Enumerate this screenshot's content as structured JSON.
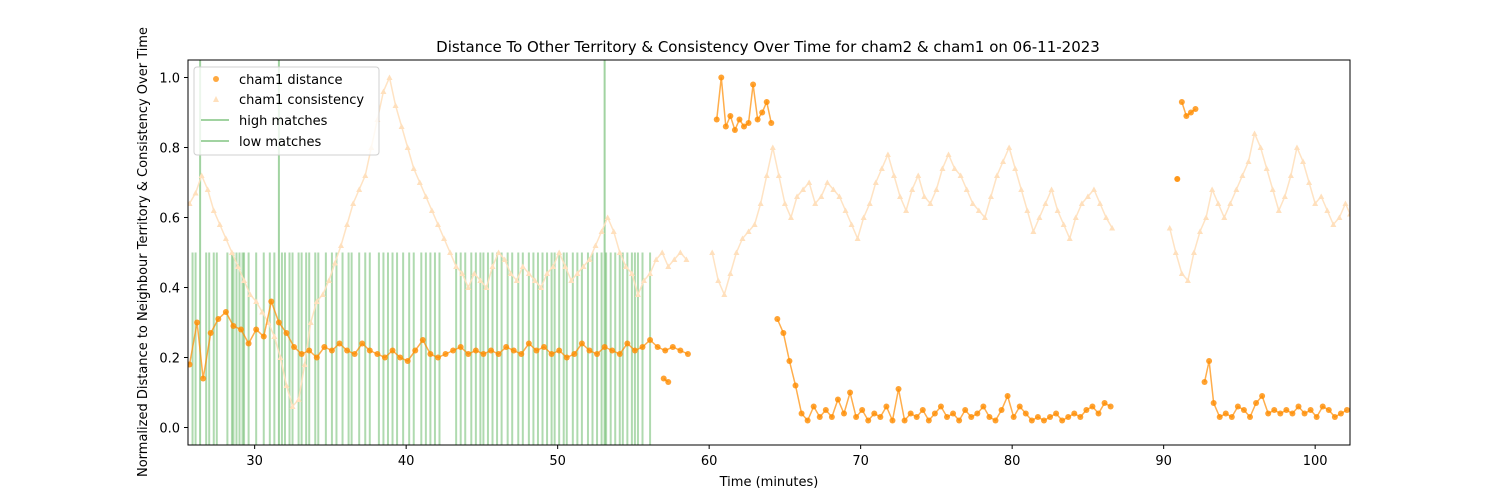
{
  "chart_data": {
    "type": "line",
    "title": "Distance To Other Territory & Consistency Over Time for cham2 & cham1 on 06-11-2023",
    "xlabel": "Time (minutes)",
    "ylabel": "Normalized Distance to Neighbour Territory & Consistency Over Time",
    "xlim": [
      25.6,
      102.3
    ],
    "ylim": [
      -0.05,
      1.05
    ],
    "xticks": [
      30,
      40,
      50,
      60,
      70,
      80,
      90,
      100
    ],
    "yticks": [
      0.0,
      0.2,
      0.4,
      0.6,
      0.8,
      1.0
    ],
    "grid": false,
    "legend_position": "top-left",
    "colors": {
      "distance": "#ff8c00",
      "consistency": "#ffe0bd",
      "matches": "#2e9e2e"
    },
    "series": [
      {
        "name": "cham1 distance",
        "segments": [
          {
            "x": [
              25.7,
              26.2,
              26.6,
              27.1,
              27.6,
              28.1,
              28.6,
              29.1,
              29.6,
              30.1,
              30.6,
              31.1,
              31.6,
              32.1,
              32.6,
              33.1,
              33.6,
              34.1,
              34.6,
              35.1,
              35.6,
              36.1,
              36.6,
              37.1,
              37.6,
              38.1,
              38.6,
              39.1,
              39.6,
              40.1,
              40.6,
              41.1,
              41.6,
              42.1,
              42.6,
              43.1,
              43.6,
              44.1,
              44.6,
              45.1,
              45.6,
              46.1,
              46.6,
              47.1,
              47.6,
              48.1,
              48.6,
              49.1,
              49.6,
              50.1,
              50.6,
              51.1,
              51.6,
              52.1,
              52.6,
              53.1,
              53.6,
              54.1,
              54.6,
              55.1,
              55.6,
              56.1,
              56.6,
              57.1,
              57.6,
              58.1,
              58.6
            ],
            "y": [
              0.18,
              0.3,
              0.14,
              0.27,
              0.31,
              0.33,
              0.29,
              0.28,
              0.24,
              0.28,
              0.26,
              0.36,
              0.3,
              0.27,
              0.23,
              0.21,
              0.22,
              0.2,
              0.23,
              0.22,
              0.24,
              0.22,
              0.21,
              0.24,
              0.22,
              0.21,
              0.2,
              0.22,
              0.2,
              0.19,
              0.22,
              0.25,
              0.21,
              0.2,
              0.21,
              0.22,
              0.23,
              0.21,
              0.22,
              0.21,
              0.22,
              0.21,
              0.23,
              0.22,
              0.21,
              0.24,
              0.22,
              0.23,
              0.21,
              0.22,
              0.2,
              0.21,
              0.24,
              0.22,
              0.21,
              0.23,
              0.22,
              0.21,
              0.24,
              0.22,
              0.23,
              0.25,
              0.23,
              0.22,
              0.23,
              0.22,
              0.21
            ]
          },
          {
            "x": [
              57.0,
              57.3
            ],
            "y": [
              0.14,
              0.13
            ]
          },
          {
            "x": [
              60.5,
              60.8,
              61.1,
              61.4,
              61.7,
              62.0,
              62.3,
              62.6,
              62.9,
              63.2,
              63.5,
              63.8,
              64.1
            ],
            "y": [
              0.88,
              1.0,
              0.86,
              0.89,
              0.85,
              0.88,
              0.86,
              0.87,
              0.98,
              0.88,
              0.9,
              0.93,
              0.87
            ]
          },
          {
            "x": [
              64.5,
              64.9,
              65.3,
              65.7,
              66.1,
              66.5,
              66.9,
              67.3,
              67.7,
              68.1,
              68.5,
              68.9,
              69.3,
              69.7,
              70.1,
              70.5,
              70.9,
              71.3,
              71.7,
              72.1,
              72.5,
              72.9,
              73.3,
              73.7,
              74.1,
              74.5,
              74.9,
              75.3,
              75.7,
              76.1,
              76.5,
              76.9,
              77.3,
              77.7,
              78.1,
              78.5,
              78.9,
              79.3,
              79.7,
              80.1,
              80.5,
              80.9,
              81.3,
              81.7,
              82.1,
              82.5,
              82.9,
              83.3,
              83.7,
              84.1,
              84.5,
              84.9,
              85.3,
              85.7,
              86.1,
              86.5
            ],
            "y": [
              0.31,
              0.27,
              0.19,
              0.12,
              0.04,
              0.02,
              0.06,
              0.03,
              0.05,
              0.03,
              0.08,
              0.04,
              0.1,
              0.03,
              0.05,
              0.02,
              0.04,
              0.03,
              0.06,
              0.02,
              0.11,
              0.02,
              0.04,
              0.03,
              0.05,
              0.02,
              0.04,
              0.06,
              0.03,
              0.04,
              0.02,
              0.05,
              0.03,
              0.04,
              0.06,
              0.03,
              0.02,
              0.05,
              0.09,
              0.03,
              0.06,
              0.04,
              0.02,
              0.03,
              0.02,
              0.03,
              0.04,
              0.02,
              0.03,
              0.04,
              0.03,
              0.05,
              0.06,
              0.04,
              0.07,
              0.06
            ]
          },
          {
            "x": [
              91.2,
              91.5,
              91.8,
              92.1
            ],
            "y": [
              0.93,
              0.89,
              0.9,
              0.91
            ]
          },
          {
            "x": [
              92.7,
              93.0,
              93.3,
              93.7,
              94.1,
              94.5,
              94.9,
              95.3,
              95.7,
              96.1,
              96.5,
              96.9,
              97.3,
              97.7,
              98.1,
              98.5,
              98.9,
              99.3,
              99.7,
              100.1,
              100.5,
              100.9,
              101.3,
              101.7,
              102.1
            ],
            "y": [
              0.13,
              0.19,
              0.07,
              0.03,
              0.04,
              0.03,
              0.06,
              0.05,
              0.03,
              0.07,
              0.09,
              0.04,
              0.05,
              0.04,
              0.05,
              0.04,
              0.06,
              0.04,
              0.05,
              0.03,
              0.06,
              0.05,
              0.03,
              0.04,
              0.05
            ]
          }
        ],
        "isolated": [
          {
            "x": 90.9,
            "y": 0.71
          }
        ]
      },
      {
        "name": "cham1 consistency",
        "segments": [
          {
            "x": [
              25.7,
              26.1,
              26.5,
              26.9,
              27.3,
              27.7,
              28.1,
              28.5,
              28.9,
              29.3,
              29.7,
              30.1,
              30.5,
              30.9,
              31.3,
              31.7,
              32.1,
              32.5,
              32.9,
              33.3,
              33.7,
              34.1,
              34.5,
              34.9,
              35.3,
              35.7,
              36.1,
              36.5,
              36.9,
              37.3,
              37.7,
              38.1,
              38.5,
              38.9,
              39.3,
              39.7,
              40.1,
              40.5,
              40.9,
              41.3,
              41.7,
              42.1,
              42.5,
              42.9,
              43.3,
              43.7,
              44.1,
              44.5,
              44.9,
              45.3,
              45.7,
              46.1,
              46.5,
              46.9,
              47.3,
              47.7,
              48.1,
              48.5,
              48.9,
              49.3,
              49.7,
              50.1,
              50.5,
              50.9,
              51.3,
              51.7,
              52.1,
              52.5,
              52.9,
              53.3,
              53.7,
              54.1,
              54.5,
              54.9,
              55.3,
              55.7,
              56.1,
              56.5,
              56.9,
              57.3,
              57.7,
              58.1,
              58.5
            ],
            "y": [
              0.64,
              0.67,
              0.72,
              0.68,
              0.62,
              0.58,
              0.54,
              0.5,
              0.46,
              0.42,
              0.38,
              0.36,
              0.33,
              0.3,
              0.26,
              0.2,
              0.12,
              0.06,
              0.08,
              0.18,
              0.3,
              0.36,
              0.38,
              0.42,
              0.47,
              0.52,
              0.58,
              0.64,
              0.68,
              0.72,
              0.8,
              0.88,
              0.96,
              1.0,
              0.92,
              0.86,
              0.8,
              0.74,
              0.7,
              0.66,
              0.62,
              0.58,
              0.54,
              0.5,
              0.46,
              0.44,
              0.4,
              0.44,
              0.42,
              0.4,
              0.46,
              0.5,
              0.48,
              0.44,
              0.42,
              0.46,
              0.44,
              0.42,
              0.4,
              0.44,
              0.46,
              0.5,
              0.46,
              0.42,
              0.44,
              0.46,
              0.48,
              0.52,
              0.56,
              0.6,
              0.56,
              0.5,
              0.46,
              0.44,
              0.38,
              0.42,
              0.44,
              0.48,
              0.5,
              0.46,
              0.48,
              0.5,
              0.48
            ]
          },
          {
            "x": [
              60.2,
              60.6,
              61.0,
              61.4,
              61.8,
              62.2,
              62.6,
              63.0,
              63.4,
              63.8,
              64.2,
              64.6,
              65.0,
              65.4,
              65.8,
              66.2,
              66.6,
              67.0,
              67.4,
              67.8,
              68.2,
              68.6,
              69.0,
              69.4,
              69.8,
              70.2,
              70.6,
              71.0,
              71.4,
              71.8,
              72.2,
              72.6,
              73.0,
              73.4,
              73.8,
              74.2,
              74.6,
              75.0,
              75.4,
              75.8,
              76.2,
              76.6,
              77.0,
              77.4,
              77.8,
              78.2,
              78.6,
              79.0,
              79.4,
              79.8,
              80.2,
              80.6,
              81.0,
              81.4,
              81.8,
              82.2,
              82.6,
              83.0,
              83.4,
              83.8,
              84.2,
              84.6,
              85.0,
              85.4,
              85.8,
              86.2,
              86.6
            ],
            "y": [
              0.5,
              0.42,
              0.38,
              0.44,
              0.5,
              0.54,
              0.56,
              0.58,
              0.64,
              0.72,
              0.8,
              0.72,
              0.64,
              0.6,
              0.66,
              0.68,
              0.7,
              0.64,
              0.66,
              0.7,
              0.68,
              0.66,
              0.62,
              0.58,
              0.54,
              0.6,
              0.64,
              0.7,
              0.74,
              0.78,
              0.72,
              0.66,
              0.62,
              0.68,
              0.72,
              0.66,
              0.64,
              0.68,
              0.74,
              0.78,
              0.74,
              0.72,
              0.68,
              0.64,
              0.62,
              0.6,
              0.66,
              0.72,
              0.76,
              0.8,
              0.74,
              0.68,
              0.62,
              0.56,
              0.6,
              0.64,
              0.68,
              0.62,
              0.58,
              0.54,
              0.6,
              0.64,
              0.66,
              0.68,
              0.64,
              0.6,
              0.57
            ]
          },
          {
            "x": [
              90.4,
              90.8,
              91.2,
              91.6,
              92.0,
              92.4,
              92.8,
              93.2,
              93.6,
              94.0,
              94.4,
              94.8,
              95.2,
              95.6,
              96.0,
              96.4,
              96.8,
              97.2,
              97.6,
              98.0,
              98.4,
              98.8,
              99.2,
              99.6,
              100.0,
              100.4,
              100.8,
              101.2,
              101.6,
              102.0,
              102.3
            ],
            "y": [
              0.57,
              0.5,
              0.44,
              0.42,
              0.5,
              0.56,
              0.6,
              0.68,
              0.64,
              0.6,
              0.64,
              0.68,
              0.72,
              0.76,
              0.84,
              0.8,
              0.74,
              0.68,
              0.62,
              0.66,
              0.72,
              0.8,
              0.76,
              0.7,
              0.64,
              0.66,
              0.62,
              0.58,
              0.6,
              0.64,
              0.61
            ]
          }
        ]
      },
      {
        "name": "high matches",
        "x": [
          26.4,
          31.6,
          53.1
        ],
        "ymin": -0.05,
        "ymax": 1.05
      },
      {
        "name": "low matches",
        "x": [
          25.9,
          26.1,
          26.8,
          27.0,
          27.3,
          27.5,
          28.2,
          28.5,
          28.6,
          28.8,
          29.0,
          29.2,
          29.3,
          29.6,
          30.1,
          30.6,
          31.0,
          31.3,
          31.8,
          32.0,
          32.3,
          32.5,
          32.9,
          33.1,
          33.4,
          33.6,
          34.0,
          34.2,
          34.7,
          35.1,
          35.4,
          35.8,
          36.2,
          36.4,
          36.9,
          37.3,
          37.6,
          38.2,
          38.5,
          38.8,
          39.1,
          39.4,
          39.8,
          40.2,
          40.5,
          41.0,
          41.3,
          41.6,
          41.9,
          42.2,
          43.3,
          43.6,
          43.9,
          44.3,
          44.6,
          44.9,
          45.1,
          45.4,
          45.7,
          46.0,
          46.3,
          46.7,
          47.0,
          47.4,
          47.7,
          48.1,
          48.4,
          48.7,
          49.0,
          49.3,
          49.6,
          49.8,
          50.1,
          50.4,
          50.6,
          51.0,
          51.3,
          51.6,
          52.0,
          52.3,
          52.6,
          52.9,
          53.2,
          53.5,
          53.8,
          54.1,
          54.3,
          54.6,
          54.9,
          55.1,
          55.3,
          55.6,
          56.1
        ],
        "ymin": -0.05,
        "ymax": 0.5
      }
    ]
  }
}
